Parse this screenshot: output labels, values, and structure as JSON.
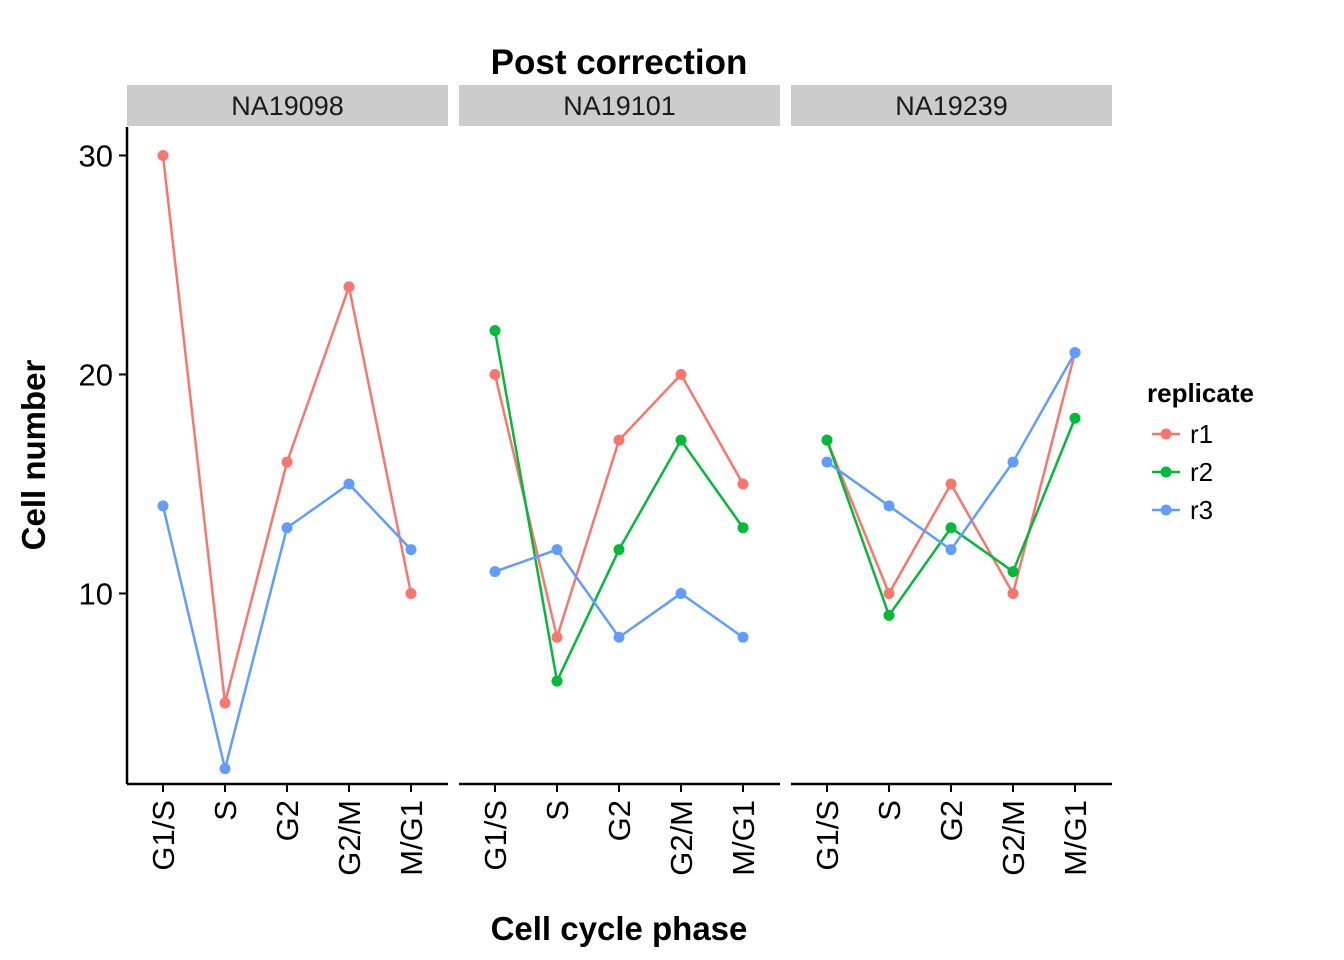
{
  "chart_data": {
    "type": "line",
    "title": "Post correction",
    "xlabel": "Cell cycle phase",
    "ylabel": "Cell number",
    "ylim": [
      1.3,
      31.3
    ],
    "yticks": [
      10,
      20,
      30
    ],
    "categories": [
      "G1/S",
      "S",
      "G2",
      "G2/M",
      "M/G1"
    ],
    "grid": false,
    "legend": {
      "title": "replicate",
      "placement": "right",
      "entries": [
        {
          "name": "r1",
          "color": "#F8766D"
        },
        {
          "name": "r2",
          "color": "#00BA38"
        },
        {
          "name": "r3",
          "color": "#619CFF"
        }
      ]
    },
    "panels": [
      {
        "label": "NA19098",
        "series": [
          {
            "name": "r1",
            "values": [
              30,
              5,
              16,
              24,
              10
            ]
          },
          {
            "name": "r3",
            "values": [
              14,
              2,
              13,
              15,
              12
            ]
          }
        ]
      },
      {
        "label": "NA19101",
        "series": [
          {
            "name": "r1",
            "values": [
              20,
              8,
              17,
              20,
              15
            ]
          },
          {
            "name": "r2",
            "values": [
              22,
              6,
              12,
              17,
              13
            ]
          },
          {
            "name": "r3",
            "values": [
              11,
              12,
              8,
              10,
              8
            ]
          }
        ]
      },
      {
        "label": "NA19239",
        "series": [
          {
            "name": "r1",
            "values": [
              17,
              10,
              15,
              10,
              21
            ]
          },
          {
            "name": "r2",
            "values": [
              17,
              9,
              13,
              11,
              18
            ]
          },
          {
            "name": "r3",
            "values": [
              16,
              14,
              12,
              16,
              21
            ]
          }
        ]
      }
    ]
  }
}
